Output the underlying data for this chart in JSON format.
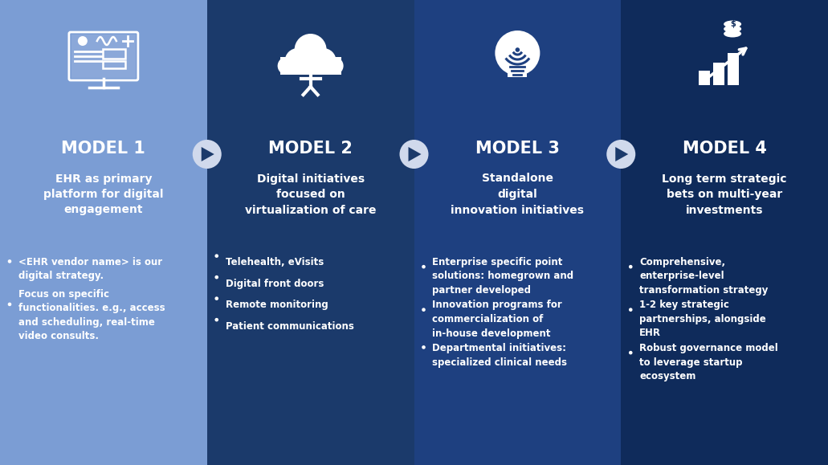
{
  "bg_color": "#f0f2f7",
  "col_colors": [
    "#7B9DD4",
    "#1B3A6B",
    "#1E4080",
    "#0F2B5B"
  ],
  "arrow_circle_color": "#D0D9EC",
  "models": [
    "MODEL 1",
    "MODEL 2",
    "MODEL 3",
    "MODEL 4"
  ],
  "subtitles": [
    "EHR as primary\nplatform for digital\nengagement",
    "Digital initiatives\nfocused on\nvirtualization of care",
    "Standalone\ndigital\ninnovation initiatives",
    "Long term strategic\nbets on multi-year\ninvestments"
  ],
  "bullets": [
    [
      "<EHR vendor name> is our\ndigital strategy.",
      "Focus on specific\nfunctionalities. e.g., access\nand scheduling, real-time\nvideo consults."
    ],
    [
      "Telehealth, eVisits",
      "Digital front doors",
      "Remote monitoring",
      "Patient communications"
    ],
    [
      "Enterprise specific point\nsolutions: homegrown and\npartner developed",
      "Innovation programs for\ncommercialization of\nin-house development",
      "Departmental initiatives:\nspecialized clinical needs"
    ],
    [
      "Comprehensive,\nenterprise-level\ntransformation strategy",
      "1-2 key strategic\npartnerships, alongside\nEHR",
      "Robust governance model\nto leverage startup\necosystem"
    ]
  ],
  "text_color": "#ffffff",
  "title_fontsize": 15,
  "subtitle_fontsize": 10,
  "bullet_fontsize": 8.5
}
